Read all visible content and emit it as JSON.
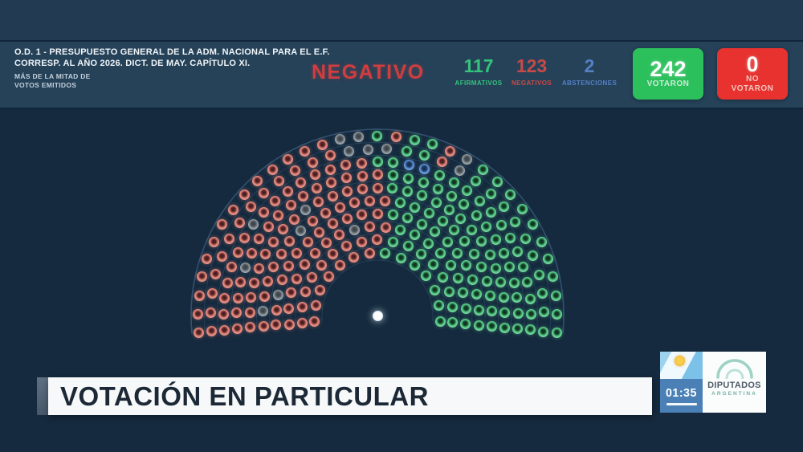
{
  "header": {
    "order_line1": "O.D. 1 - PRESUPUESTO GENERAL DE LA ADM. NACIONAL PARA EL E.F.",
    "order_line2": "CORRESP. AL AÑO 2026. DICT. DE MAY. CAPÍTULO XI.",
    "subnote_line1": "MÁS DE LA MITAD DE",
    "subnote_line2": "VOTOS EMITIDOS",
    "result_label": "NEGATIVO",
    "result_color": "#d23d3f",
    "counters": [
      {
        "value": "117",
        "label": "AFIRMATIVOS",
        "color": "#35c27a"
      },
      {
        "value": "123",
        "label": "NEGATIVOS",
        "color": "#c84a47"
      },
      {
        "value": "2",
        "label": "ABSTENCIONES",
        "color": "#5480c6"
      }
    ],
    "voted_box": {
      "value": "242",
      "label": "VOTARON",
      "color": "#2cc05c"
    },
    "not_voted_box": {
      "value": "0",
      "label_line1": "NO",
      "label_line2": "VOTARON",
      "color": "#e73230"
    }
  },
  "banner": {
    "title": "VOTACIÓN EN PARTICULAR"
  },
  "widget": {
    "timer": "01:35",
    "logo_line1": "DIPUTADOS",
    "logo_line2": "ARGENTINA"
  },
  "chart_data": {
    "type": "parliament-hemicycle",
    "title": "Votación en particular — O.D. 1 Presupuesto General Adm. Nacional E.F. 2026",
    "result": "NEGATIVO",
    "totals": {
      "afirmativos": 117,
      "negativos": 123,
      "abstenciones": 2,
      "votaron": 242,
      "no_votaron": 0,
      "ausentes_gris": 14,
      "presidencia_blanco": 1,
      "total_seats": 257
    },
    "legend": {
      "R": "negativo",
      "G": "afirmativo",
      "A": "abstencion",
      "X": "ausente"
    },
    "seat_colors": {
      "R": "#dd8177",
      "G": "#53c883",
      "A": "#5d92d8",
      "X": "#98a0a7",
      "speaker": "#ffffff"
    },
    "rows_inner_to_outer": [
      {
        "seats": "RRRRRRRGGGGGGG"
      },
      {
        "seats": "RRRRRRRRRGGGGGGGG"
      },
      {
        "seats": "RRRRRRRRXRRGGGGGGGGG"
      },
      {
        "seats": "RRXRRRRRRRRRGGGGGGGGGGG"
      },
      {
        "seats": "RXRRRRRXRRRRRRGGGGGGGGGGGG"
      },
      {
        "seats": "RRRRRRRRRXRRRRRGGGGGGGGGGGGGG"
      },
      {
        "seats": "RRRRXRRRRRRRRRRRGGGGGGGGGGGGGGG"
      },
      {
        "seats": "RRRRRRRXRRRRRRRRGGAAGGGGGGGGGGGGG"
      },
      {
        "seats": "RRRRRRRRRRRRRXXXGGRXGGGGGGGGGG"
      },
      {
        "seats": "RRRRRRRRRRRRRRXXGRGGRXGGGGGGGGGGG"
      }
    ]
  }
}
